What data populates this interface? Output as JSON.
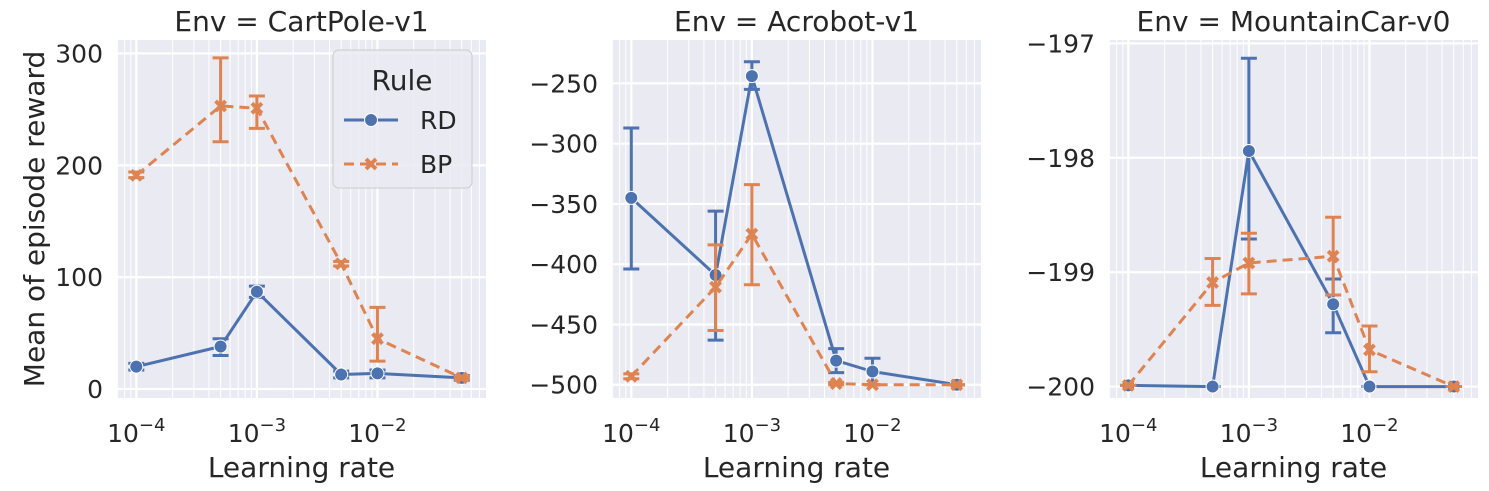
{
  "ylabel": "Mean of episode reward",
  "legend": {
    "title": "Rule",
    "entries": [
      {
        "name": "RD",
        "color": "#4c72b0",
        "marker": "circle",
        "linestyle": "solid"
      },
      {
        "name": "BP",
        "color": "#dd8452",
        "marker": "x",
        "linestyle": "dashed"
      }
    ],
    "placement": "top-right of first panel"
  },
  "chart_data": [
    {
      "type": "line",
      "title": "Env = CartPole-v1",
      "xlabel": "Learning rate",
      "xscale": "log",
      "xticks": [
        {
          "value": 0.0001,
          "base": "10",
          "exp": "−4"
        },
        {
          "value": 0.001,
          "base": "10",
          "exp": "−3"
        },
        {
          "value": 0.01,
          "base": "10",
          "exp": "−2"
        }
      ],
      "yticks": [
        0,
        100,
        200,
        300
      ],
      "ylim": [
        -8,
        312
      ],
      "grid": true,
      "series": [
        {
          "name": "RD",
          "x": [
            0.0001,
            0.0005,
            0.001,
            0.005,
            0.01,
            0.05
          ],
          "y": [
            20,
            38,
            87,
            13,
            14,
            10
          ],
          "err_low": [
            17,
            30,
            82,
            10,
            10,
            8
          ],
          "err_high": [
            23,
            45,
            92,
            16,
            17,
            12
          ]
        },
        {
          "name": "BP",
          "x": [
            0.0001,
            0.0005,
            0.001,
            0.005,
            0.01,
            0.05
          ],
          "y": [
            191,
            253,
            251,
            112,
            45,
            10
          ],
          "err_low": [
            189,
            221,
            233,
            110,
            25,
            9
          ],
          "err_high": [
            194,
            296,
            262,
            114,
            73,
            11
          ]
        }
      ]
    },
    {
      "type": "line",
      "title": "Env = Acrobot-v1",
      "xlabel": "Learning rate",
      "xscale": "log",
      "xticks": [
        {
          "value": 0.0001,
          "base": "10",
          "exp": "−4"
        },
        {
          "value": 0.001,
          "base": "10",
          "exp": "−3"
        },
        {
          "value": 0.01,
          "base": "10",
          "exp": "−2"
        }
      ],
      "yticks": [
        -500,
        -450,
        -400,
        -350,
        -300,
        -250
      ],
      "ylim": [
        -511,
        -214
      ],
      "grid": true,
      "series": [
        {
          "name": "RD",
          "x": [
            0.0001,
            0.0005,
            0.001,
            0.005,
            0.01,
            0.05
          ],
          "y": [
            -345,
            -409,
            -244,
            -480,
            -489,
            -500
          ],
          "err_low": [
            -404,
            -463,
            -255,
            -490,
            -500,
            -500
          ],
          "err_high": [
            -287,
            -356,
            -232,
            -470,
            -478,
            -500
          ]
        },
        {
          "name": "BP",
          "x": [
            0.0001,
            0.0005,
            0.001,
            0.005,
            0.01,
            0.05
          ],
          "y": [
            -493,
            -419,
            -375,
            -499,
            -500,
            -500
          ],
          "err_low": [
            -495,
            -455,
            -417,
            -500,
            -500,
            -500
          ],
          "err_high": [
            -491,
            -384,
            -334,
            -498,
            -500,
            -500
          ]
        }
      ]
    },
    {
      "type": "line",
      "title": "Env = MountainCar-v0",
      "xlabel": "Learning rate",
      "xscale": "log",
      "xticks": [
        {
          "value": 0.0001,
          "base": "10",
          "exp": "−4"
        },
        {
          "value": 0.001,
          "base": "10",
          "exp": "−3"
        },
        {
          "value": 0.01,
          "base": "10",
          "exp": "−2"
        }
      ],
      "yticks": [
        -200,
        -199,
        -198,
        -197
      ],
      "ytick_labels": [
        "−200",
        "−199",
        "−198",
        "−197"
      ],
      "ylim": [
        -200.1,
        -196.97
      ],
      "grid": true,
      "series": [
        {
          "name": "RD",
          "x": [
            0.0001,
            0.0005,
            0.001,
            0.005,
            0.01,
            0.05
          ],
          "y": [
            -199.99,
            -200.0,
            -197.94,
            -199.28,
            -200.0,
            -200.0
          ],
          "err_low": [
            -199.99,
            -200.0,
            -198.71,
            -199.53,
            -200.0,
            -200.0
          ],
          "err_high": [
            -199.99,
            -200.0,
            -197.13,
            -199.06,
            -200.0,
            -200.0
          ]
        },
        {
          "name": "BP",
          "x": [
            0.0001,
            0.0005,
            0.001,
            0.005,
            0.01,
            0.05
          ],
          "y": [
            -199.99,
            -199.09,
            -198.92,
            -198.86,
            -199.68,
            -200.0
          ],
          "err_low": [
            -199.99,
            -199.29,
            -199.19,
            -199.2,
            -199.87,
            -200.0
          ],
          "err_high": [
            -199.99,
            -198.88,
            -198.66,
            -198.52,
            -199.47,
            -200.0
          ]
        }
      ]
    }
  ]
}
